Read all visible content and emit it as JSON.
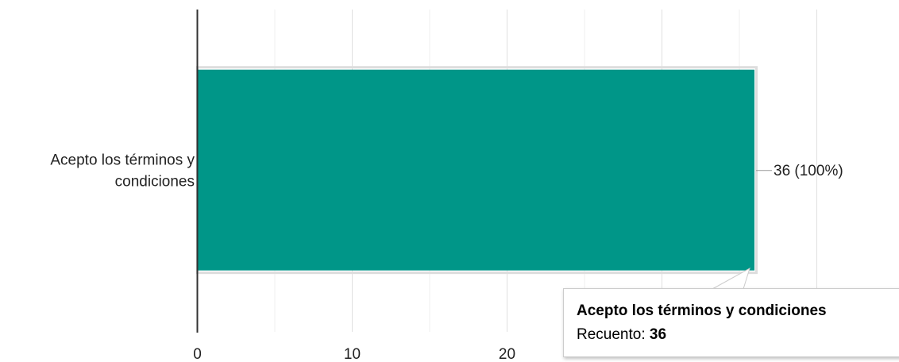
{
  "chart_data": {
    "type": "bar",
    "orientation": "horizontal",
    "categories": [
      "Acepto los términos y condiciones"
    ],
    "category_label_lines": [
      "Acepto los términos y",
      "condiciones"
    ],
    "values": [
      36
    ],
    "data_labels": [
      "36 (100%)"
    ],
    "x_ticks": [
      0,
      10,
      20,
      30
    ],
    "x_tick_labels": [
      "0",
      "10",
      "20",
      ""
    ],
    "xlim": [
      0,
      40
    ],
    "grid": true,
    "minor_grid": true,
    "title": "",
    "xlabel": "",
    "ylabel": "",
    "colors": {
      "bar": "#009688",
      "axis": "#333333",
      "grid": "#e0e0e0",
      "minor_grid": "#efefef",
      "text": "#222222",
      "label_line": "#999999"
    }
  },
  "tooltip": {
    "title": "Acepto los términos y condiciones",
    "count_label": "Recuento:",
    "count_value": "36"
  }
}
